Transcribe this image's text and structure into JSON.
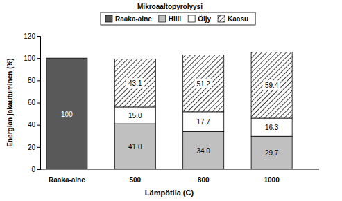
{
  "chart_data": {
    "type": "bar",
    "title": "Mikroaaltopyrolyysi",
    "x_label": "Lämpötila (C)",
    "y_label": "Energian jakautuminen (%)",
    "categories": [
      "Raaka-aine",
      "500",
      "800",
      "1000"
    ],
    "series": [
      {
        "name": "Raaka-aine",
        "color": "#595959",
        "values": [
          100,
          null,
          null,
          null
        ],
        "value_labels": [
          "100",
          null,
          null,
          null
        ]
      },
      {
        "name": "Hiili",
        "color": "#c0c0c0",
        "values": [
          null,
          41.0,
          34.0,
          29.7
        ],
        "value_labels": [
          null,
          "41.0",
          "34.0",
          "29.7"
        ]
      },
      {
        "name": "Öljy",
        "color": "#ffffff",
        "values": [
          null,
          15.0,
          17.7,
          16.3
        ],
        "value_labels": [
          null,
          "15.0",
          "17.7",
          "16.3"
        ]
      },
      {
        "name": "Kaasu",
        "color": "#404040",
        "values": [
          null,
          43.1,
          51.2,
          59.4
        ],
        "value_labels": [
          null,
          "43.1",
          "51.2",
          "59.4"
        ]
      }
    ],
    "ylim": [
      0,
      120
    ],
    "yticks": [
      0,
      20,
      40,
      60,
      80,
      100,
      120
    ],
    "stacked": true,
    "data_labels": true,
    "legend": "top",
    "grid": false
  }
}
